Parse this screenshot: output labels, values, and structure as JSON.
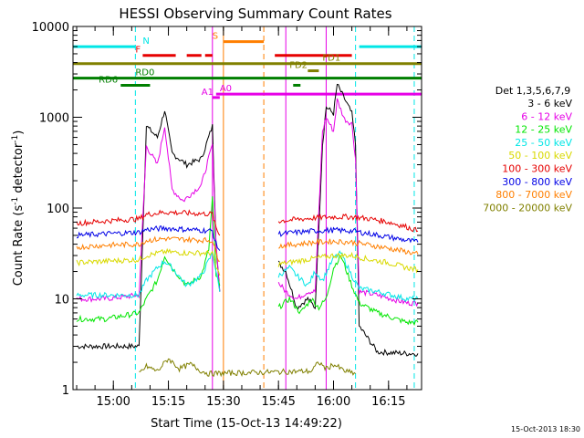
{
  "chart_data": {
    "type": "line",
    "title": "HESSI Observing Summary Count Rates",
    "xlabel": "Start Time (15-Oct-13 14:49:22)",
    "ylabel": "Count Rate (s",
    "ylabel_sup1": "-1",
    "ylabel_mid": " detector",
    "ylabel_sup2": "-1",
    "ylabel_end": ")",
    "y_scale": "log",
    "xlim": [
      "14:49",
      "16:24"
    ],
    "ylim": [
      1,
      10000
    ],
    "x_ticks": [
      "15:00",
      "15:15",
      "15:30",
      "15:45",
      "16:00",
      "16:15"
    ],
    "y_ticks": [
      "1",
      "10",
      "100",
      "1000",
      "10000"
    ],
    "legend_title": "Det 1,3,5,6,7,9",
    "legend_position": "right",
    "timestamp": "15-Oct-2013 18:30",
    "series": [
      {
        "name": "3 - 6 keV",
        "color": "#000000",
        "x": [
          "14:50",
          "14:58",
          "15:07",
          "15:09",
          "15:12",
          "15:14",
          "15:16",
          "15:20",
          "15:24",
          "15:27",
          "15:28",
          "15:29",
          "15:41",
          "15:45",
          "15:47",
          "15:50",
          "15:53",
          "15:55",
          "15:57",
          "15:58",
          "16:00",
          "16:01",
          "16:03",
          "16:05",
          "16:06",
          "16:07",
          "16:12",
          "16:20",
          "16:23"
        ],
        "y": [
          3,
          3,
          3,
          800,
          600,
          1200,
          400,
          300,
          350,
          800,
          40,
          12,
          null,
          25,
          20,
          8,
          10,
          8,
          500,
          1300,
          1100,
          2300,
          1600,
          1100,
          500,
          5,
          2.6,
          2.5,
          2.5
        ]
      },
      {
        "name": "6 - 12 keV",
        "color": "#e600e6",
        "x": [
          "14:50",
          "14:58",
          "15:07",
          "15:09",
          "15:12",
          "15:14",
          "15:16",
          "15:19",
          "15:24",
          "15:27",
          "15:28",
          "15:29",
          "15:41",
          "15:45",
          "15:47",
          "15:50",
          "15:53",
          "15:55",
          "15:57",
          "15:58",
          "16:00",
          "16:01",
          "16:03",
          "16:05",
          "16:06",
          "16:07",
          "16:12",
          "16:20",
          "16:23"
        ],
        "y": [
          10,
          10,
          11,
          480,
          300,
          800,
          160,
          120,
          180,
          500,
          40,
          12,
          null,
          15,
          12,
          10,
          12,
          12,
          700,
          1000,
          700,
          1550,
          950,
          850,
          350,
          12,
          11,
          9,
          9
        ]
      },
      {
        "name": "12 - 25 keV",
        "color": "#00e600",
        "x": [
          "14:50",
          "14:58",
          "15:07",
          "15:09",
          "15:12",
          "15:14",
          "15:16",
          "15:20",
          "15:24",
          "15:26",
          "15:27",
          "15:28",
          "15:29",
          "15:41",
          "15:45",
          "15:48",
          "15:51",
          "15:54",
          "15:56",
          "15:58",
          "16:00",
          "16:02",
          "16:05",
          "16:07",
          "16:12",
          "16:20",
          "16:23"
        ],
        "y": [
          6,
          6,
          7,
          10,
          16,
          30,
          22,
          14,
          18,
          35,
          130,
          18,
          14,
          null,
          8,
          10,
          7,
          10,
          8,
          10,
          22,
          30,
          14,
          9,
          7,
          5.5,
          5.5
        ]
      },
      {
        "name": "25 - 50 keV",
        "color": "#00e6e6",
        "x": [
          "14:50",
          "14:58",
          "15:07",
          "15:09",
          "15:12",
          "15:14",
          "15:16",
          "15:20",
          "15:24",
          "15:27",
          "15:28",
          "15:29",
          "15:41",
          "15:45",
          "15:48",
          "15:50",
          "15:53",
          "15:55",
          "15:57",
          "16:00",
          "16:02",
          "16:05",
          "16:07",
          "16:12",
          "16:20",
          "16:23"
        ],
        "y": [
          11,
          11,
          11,
          16,
          22,
          26,
          22,
          14,
          18,
          32,
          20,
          12,
          null,
          18,
          22,
          18,
          14,
          20,
          16,
          28,
          32,
          18,
          13,
          12,
          10,
          10
        ]
      },
      {
        "name": "50 - 100 keV",
        "color": "#d9d900",
        "x": [
          "14:50",
          "14:58",
          "15:07",
          "15:09",
          "15:14",
          "15:20",
          "15:27",
          "15:28",
          "15:29",
          "15:41",
          "15:45",
          "15:50",
          "15:55",
          "16:00",
          "16:05",
          "16:10",
          "16:15",
          "16:20",
          "16:23"
        ],
        "y": [
          25,
          26,
          27,
          30,
          33,
          32,
          32,
          22,
          18,
          null,
          24,
          26,
          28,
          30,
          30,
          27,
          25,
          22,
          21
        ]
      },
      {
        "name": "100 - 300 keV",
        "color": "#e60000",
        "x": [
          "14:50",
          "14:58",
          "15:07",
          "15:09",
          "15:14",
          "15:20",
          "15:27",
          "15:28",
          "15:29",
          "15:41",
          "15:45",
          "15:50",
          "15:55",
          "16:00",
          "16:05",
          "16:10",
          "16:15",
          "16:20",
          "16:23"
        ],
        "y": [
          68,
          72,
          76,
          85,
          90,
          88,
          86,
          60,
          50,
          null,
          72,
          75,
          78,
          80,
          80,
          76,
          70,
          62,
          56
        ]
      },
      {
        "name": "300 - 800 keV",
        "color": "#0000e6",
        "x": [
          "14:50",
          "14:58",
          "15:07",
          "15:09",
          "15:14",
          "15:20",
          "15:27",
          "15:28",
          "15:29",
          "15:41",
          "15:45",
          "15:50",
          "15:55",
          "16:00",
          "16:05",
          "16:10",
          "16:15",
          "16:20",
          "16:23"
        ],
        "y": [
          50,
          52,
          54,
          58,
          60,
          58,
          56,
          40,
          34,
          null,
          52,
          54,
          56,
          57,
          56,
          52,
          48,
          44,
          42
        ]
      },
      {
        "name": "800 - 7000 keV",
        "color": "#ff7f00",
        "x": [
          "14:50",
          "14:58",
          "15:07",
          "15:09",
          "15:14",
          "15:20",
          "15:27",
          "15:28",
          "15:29",
          "15:41",
          "15:45",
          "15:50",
          "15:55",
          "16:00",
          "16:05",
          "16:10",
          "16:15",
          "16:20",
          "16:23"
        ],
        "y": [
          37,
          39,
          40,
          44,
          46,
          45,
          44,
          32,
          26,
          null,
          38,
          40,
          42,
          43,
          42,
          39,
          36,
          33,
          31
        ]
      },
      {
        "name": "7000 - 20000 keV",
        "color": "#808000",
        "x": [
          "15:07",
          "15:09",
          "15:12",
          "15:15",
          "15:18",
          "15:21",
          "15:24",
          "15:26",
          "15:54",
          "15:56",
          "15:58",
          "16:00",
          "16:03",
          "16:06"
        ],
        "y": [
          1.5,
          1.8,
          1.6,
          2.2,
          1.7,
          1.9,
          1.6,
          1.5,
          1.6,
          2.0,
          1.7,
          1.9,
          1.6,
          1.5
        ]
      }
    ],
    "flags": [
      {
        "label": "N",
        "color": "#00e6e6",
        "segments": [
          [
            "14:49",
            "15:06"
          ],
          [
            "16:07",
            "16:24"
          ]
        ],
        "level": 6000,
        "label_at": "15:08"
      },
      {
        "label": "S",
        "color": "#ff7f00",
        "segments": [
          [
            "15:30",
            "15:41"
          ]
        ],
        "level": 6800,
        "label_at": "15:27"
      },
      {
        "label": "F",
        "color": "#e60000",
        "segments": [
          [
            "15:08",
            "15:17"
          ],
          [
            "15:20",
            "15:24"
          ],
          [
            "15:25",
            "15:27"
          ],
          [
            "15:44",
            "16:05"
          ]
        ],
        "level": 4800,
        "label_at": "15:06"
      },
      {
        "label": "FD1",
        "color": "#808000",
        "segments": [
          [
            "14:49",
            "16:24"
          ]
        ],
        "level": 3900,
        "label_at": "15:57"
      },
      {
        "label": "FD2",
        "color": "#808000",
        "segments": [
          [
            "15:53",
            "15:56"
          ]
        ],
        "level": 3250,
        "label_at": "15:48"
      },
      {
        "label": "RD0",
        "color": "#007f00",
        "segments": [
          [
            "14:49",
            "16:24"
          ]
        ],
        "level": 2700,
        "label_at": "15:06"
      },
      {
        "label": "RD6",
        "color": "#007f00",
        "segments": [
          [
            "15:02",
            "15:10"
          ],
          [
            "15:49",
            "15:51"
          ]
        ],
        "level": 2250,
        "label_at": "14:56"
      },
      {
        "label": "A1",
        "color": "#e600e6",
        "segments": [
          [
            "15:27",
            "15:29"
          ]
        ],
        "level": 1650,
        "label_at": "15:24"
      },
      {
        "label": "A0",
        "color": "#e600e6",
        "segments": [
          [
            "15:28",
            "16:24"
          ]
        ],
        "level": 1800,
        "label_at": "15:29"
      }
    ],
    "vlines": [
      {
        "t": "15:06",
        "color": "#00e6e6",
        "style": "dashed"
      },
      {
        "t": "16:06",
        "color": "#00e6e6",
        "style": "dashed"
      },
      {
        "t": "16:22",
        "color": "#00e6e6",
        "style": "dashed"
      },
      {
        "t": "15:30",
        "color": "#ff7f00",
        "style": "solid"
      },
      {
        "t": "15:41",
        "color": "#ff7f00",
        "style": "dashed"
      },
      {
        "t": "15:27",
        "color": "#e600e6",
        "style": "solid"
      },
      {
        "t": "15:47",
        "color": "#e600e6",
        "style": "solid"
      },
      {
        "t": "15:58",
        "color": "#e600e6",
        "style": "solid"
      }
    ]
  }
}
